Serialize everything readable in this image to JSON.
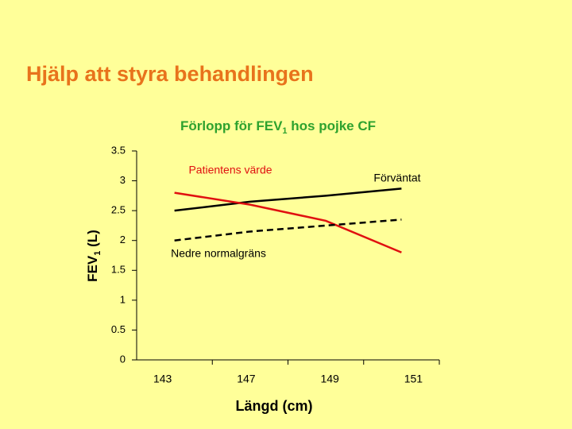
{
  "slide_title": "Hjälp att styra behandlingen",
  "chart_data": {
    "type": "line",
    "title": [
      "Förlopp för FEV",
      "1",
      " hos pojke CF"
    ],
    "y_label": [
      "FEV",
      "1",
      " (L)"
    ],
    "x_label": "Längd (cm)",
    "categories": [
      "143",
      "147",
      "149",
      "151"
    ],
    "series": [
      {
        "name": "Förväntat",
        "color": "#000000",
        "dash": false,
        "values": [
          2.5,
          2.65,
          2.75,
          2.87
        ]
      },
      {
        "name": "Patientens värde",
        "color": "#e01010",
        "dash": false,
        "values": [
          2.8,
          2.6,
          2.33,
          1.8
        ]
      },
      {
        "name": "Nedre normalgräns",
        "color": "#000000",
        "dash": true,
        "values": [
          2.0,
          2.15,
          2.25,
          2.35
        ]
      }
    ],
    "ylim": [
      0,
      3.5
    ],
    "yticks": [
      0,
      0.5,
      1,
      1.5,
      2,
      2.5,
      3,
      3.5
    ],
    "grid": false
  }
}
